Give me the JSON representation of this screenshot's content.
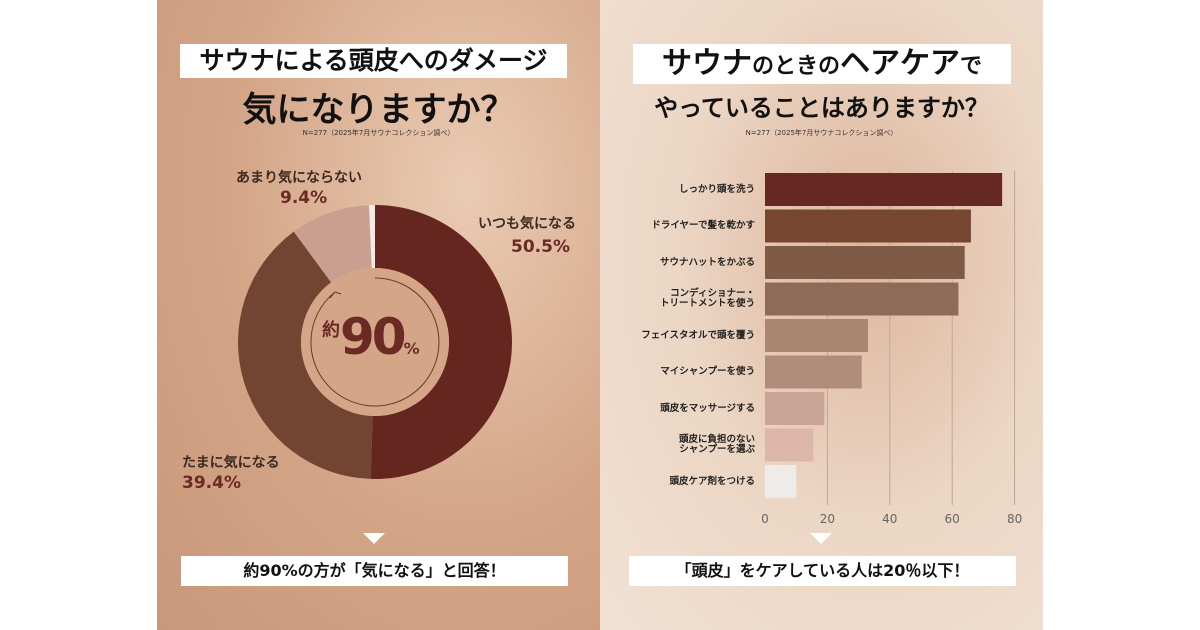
{
  "left": {
    "title_line1": "サウナによる頭皮へのダメージ",
    "title_line2": "気になりますか？",
    "note": "N=277（2025年7月サウナコレクション調べ）",
    "center_prefix": "約",
    "center_value": "90",
    "center_unit": "%",
    "conclusion": "約90%の方が「気になる」と回答！"
  },
  "right": {
    "title_line1a": "サウナ",
    "title_line1b": "のときの",
    "title_line1c": "ヘアケア",
    "title_line1d": "で",
    "title_line2": "やっていることはありますか？",
    "note": "N=277（2025年7月サウナコレクション調べ）",
    "conclusion": "「頭皮」をケアしている人は20％以下！"
  },
  "chart_data": [
    {
      "type": "pie",
      "donut": true,
      "slices": [
        {
          "label": "いつも気になる",
          "value": 50.5,
          "value_label": "50.5%",
          "color": "#65261f"
        },
        {
          "label": "たまに気になる",
          "value": 39.4,
          "value_label": "39.4%",
          "color": "#744432"
        },
        {
          "label": "あまり気にならない",
          "value": 9.4,
          "value_label": "9.4%",
          "color": "#c9a090"
        },
        {
          "label": "",
          "value": 0.7,
          "color": "#f0ebe6"
        }
      ]
    },
    {
      "type": "bar",
      "orientation": "horizontal",
      "categories": [
        "しっかり頭を洗う",
        "ドライヤーで髪を乾かす",
        "サウナハットをかぶる",
        "コンディショナー・\nトリートメントを使う",
        "フェイスタオルで頭を覆う",
        "マイシャンプーを使う",
        "頭皮をマッサージする",
        "頭皮に負担のない\nシャンプーを選ぶ",
        "頭皮ケア剤をつける"
      ],
      "values": [
        76,
        66,
        64,
        62,
        33,
        31,
        19,
        15.5,
        10
      ],
      "colors": [
        "#662822",
        "#764631",
        "#7f5a46",
        "#8e6a58",
        "#a88670",
        "#b08d7b",
        "#c9a597",
        "#dcb6a8",
        "#efebe8"
      ],
      "xlim": [
        0,
        80
      ],
      "xticks": [
        "0",
        "20",
        "40",
        "60",
        "80"
      ],
      "grid": true
    }
  ]
}
